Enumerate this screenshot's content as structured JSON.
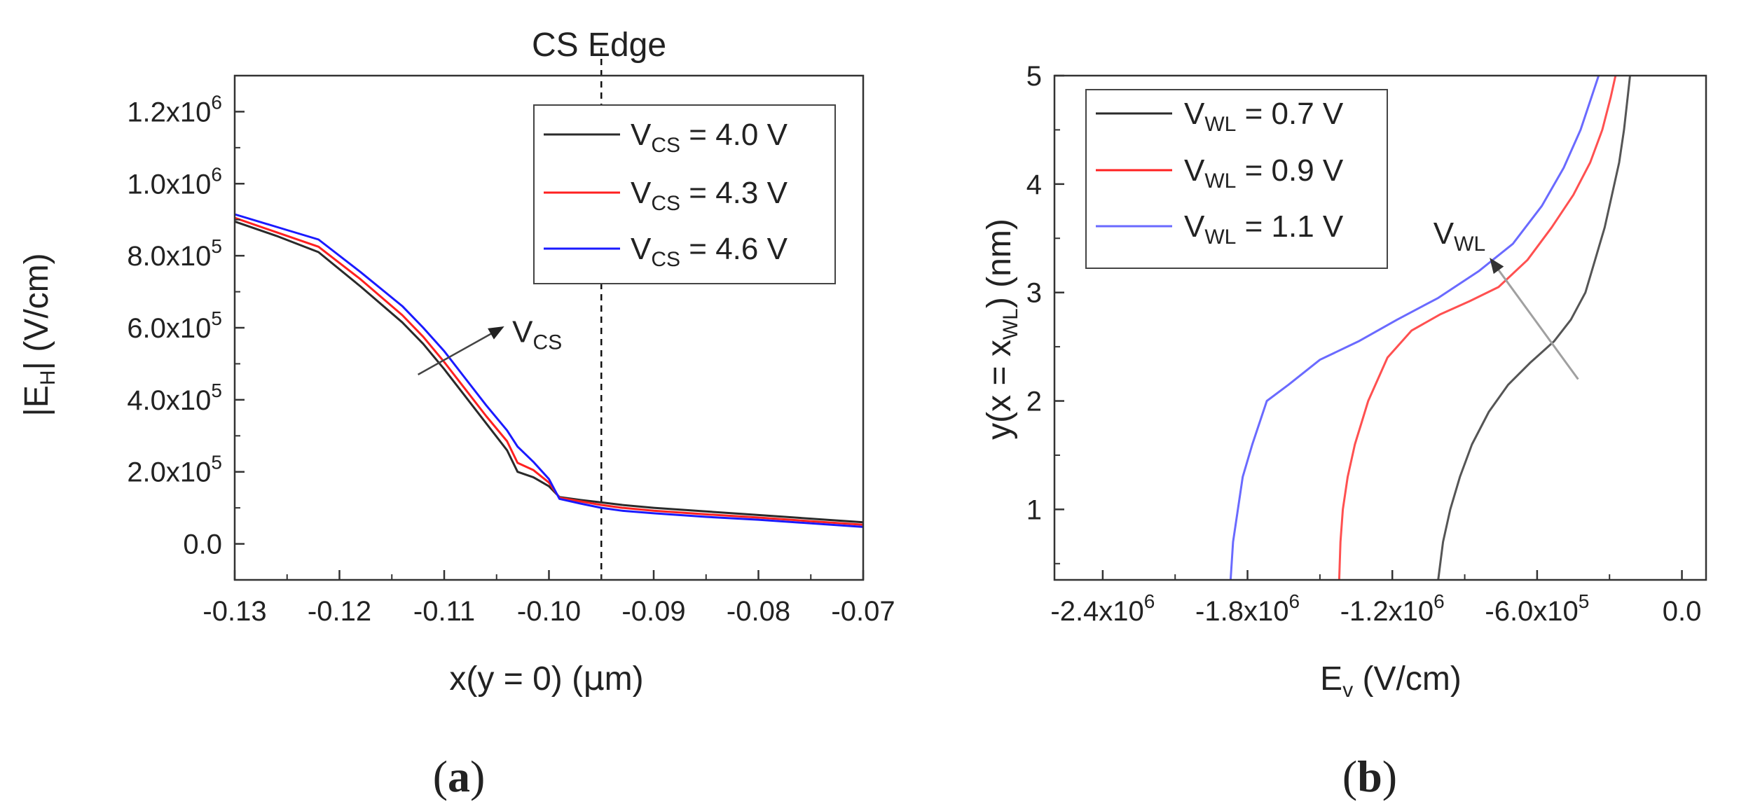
{
  "colors": {
    "black": "#2a2a2a",
    "red": "#ff2020",
    "blue": "#1a1aff",
    "gray": "#a0a0a0"
  },
  "chart_data": [
    {
      "type": "line",
      "panel": "(a)",
      "panel_letter": "a",
      "title": "CS Edge",
      "xlabel": {
        "main": "x(y = 0) (",
        "mu": "μ",
        "unit": "m)"
      },
      "ylabel": {
        "pre": "|E",
        "sub": "H",
        "post": "| (V/cm)"
      },
      "xlim": [
        -0.13,
        -0.07
      ],
      "ylim": [
        -100000,
        1300000
      ],
      "xticks": [
        -0.13,
        -0.12,
        -0.11,
        -0.1,
        -0.09,
        -0.08,
        -0.07
      ],
      "xtick_labels": [
        "-0.13",
        "-0.12",
        "-0.11",
        "-0.10",
        "-0.09",
        "-0.08",
        "-0.07"
      ],
      "yticks": [
        {
          "value": 0,
          "mant": "0.0",
          "exp": ""
        },
        {
          "value": 200000,
          "mant": "2.0x10",
          "exp": "5"
        },
        {
          "value": 400000,
          "mant": "4.0x10",
          "exp": "5"
        },
        {
          "value": 600000,
          "mant": "6.0x10",
          "exp": "5"
        },
        {
          "value": 800000,
          "mant": "8.0x10",
          "exp": "5"
        },
        {
          "value": 1000000,
          "mant": "1.0x10",
          "exp": "6"
        },
        {
          "value": 1200000,
          "mant": "1.2x10",
          "exp": "6"
        }
      ],
      "vline_x": -0.095,
      "annotation": {
        "pre": "V",
        "sub": "CS",
        "arrow_from": [
          -0.1125,
          470000
        ],
        "arrow_to": [
          -0.1045,
          600000
        ],
        "text_at": [
          -0.1035,
          560000
        ]
      },
      "series": [
        {
          "color_key": "black",
          "legend_pre": "V",
          "legend_sub": "CS",
          "legend_post": " = 4.0 V",
          "x": [
            -0.13,
            -0.126,
            -0.122,
            -0.118,
            -0.114,
            -0.112,
            -0.11,
            -0.108,
            -0.106,
            -0.104,
            -0.103,
            -0.1015,
            -0.1,
            -0.099,
            -0.097,
            -0.095,
            -0.093,
            -0.09,
            -0.085,
            -0.08,
            -0.075,
            -0.07
          ],
          "y": [
            895000,
            855000,
            810000,
            715000,
            615000,
            555000,
            485000,
            410000,
            335000,
            260000,
            200000,
            185000,
            160000,
            130000,
            122000,
            115000,
            108000,
            100000,
            90000,
            80000,
            70000,
            60000
          ]
        },
        {
          "color_key": "red",
          "legend_pre": "V",
          "legend_sub": "CS",
          "legend_post": " = 4.3 V",
          "x": [
            -0.13,
            -0.126,
            -0.122,
            -0.118,
            -0.114,
            -0.112,
            -0.11,
            -0.108,
            -0.106,
            -0.104,
            -0.103,
            -0.1015,
            -0.1,
            -0.099,
            -0.097,
            -0.095,
            -0.093,
            -0.09,
            -0.085,
            -0.08,
            -0.075,
            -0.07
          ],
          "y": [
            905000,
            865000,
            825000,
            735000,
            635000,
            575000,
            505000,
            430000,
            355000,
            285000,
            225000,
            205000,
            170000,
            128000,
            118000,
            108000,
            100000,
            92000,
            82000,
            73000,
            63000,
            53000
          ]
        },
        {
          "color_key": "blue",
          "legend_pre": "V",
          "legend_sub": "CS",
          "legend_post": " = 4.6 V",
          "x": [
            -0.13,
            -0.126,
            -0.122,
            -0.118,
            -0.114,
            -0.112,
            -0.11,
            -0.108,
            -0.106,
            -0.104,
            -0.103,
            -0.1015,
            -0.1,
            -0.099,
            -0.097,
            -0.095,
            -0.093,
            -0.09,
            -0.085,
            -0.08,
            -0.075,
            -0.07
          ],
          "y": [
            915000,
            880000,
            845000,
            755000,
            660000,
            600000,
            535000,
            460000,
            385000,
            315000,
            270000,
            228000,
            180000,
            125000,
            112000,
            100000,
            92000,
            85000,
            75000,
            67000,
            57000,
            47000
          ]
        }
      ]
    },
    {
      "type": "line",
      "panel": "(b)",
      "panel_letter": "b",
      "title": "",
      "xlabel": {
        "pre": "E",
        "sub": "v",
        "post": " (V/cm)"
      },
      "ylabel": {
        "pre": "y(x = x",
        "sub": "WL",
        "post": ") (nm)"
      },
      "xlim": [
        -2600000,
        100000
      ],
      "ylim": [
        0.35,
        5
      ],
      "xticks": [
        {
          "value": -2400000,
          "mant": "-2.4x10",
          "exp": "6"
        },
        {
          "value": -1800000,
          "mant": "-1.8x10",
          "exp": "6"
        },
        {
          "value": -1200000,
          "mant": "-1.2x10",
          "exp": "6"
        },
        {
          "value": -600000,
          "mant": "-6.0x10",
          "exp": "5"
        },
        {
          "value": 0,
          "mant": "0.0",
          "exp": ""
        }
      ],
      "yticks": [
        1,
        2,
        3,
        4,
        5
      ],
      "ytick_labels": [
        "1",
        "2",
        "3",
        "4",
        "5"
      ],
      "annotation": {
        "pre": "V",
        "sub": "WL",
        "arrow_from": [
          -430000,
          2.2
        ],
        "arrow_to": [
          -790000,
          3.3
        ],
        "text_at": [
          -1030000,
          3.45
        ]
      },
      "series": [
        {
          "color_key": "black",
          "legend_pre": "V",
          "legend_sub": "WL",
          "legend_post": " = 0.7 V",
          "x": [
            -1010000,
            -990000,
            -960000,
            -920000,
            -870000,
            -800000,
            -720000,
            -630000,
            -530000,
            -460000,
            -400000,
            -360000,
            -320000,
            -290000,
            -260000,
            -240000,
            -225000,
            -215000
          ],
          "y": [
            0.35,
            0.7,
            1.0,
            1.3,
            1.6,
            1.9,
            2.15,
            2.35,
            2.55,
            2.75,
            3.0,
            3.3,
            3.6,
            3.9,
            4.2,
            4.5,
            4.8,
            5.0
          ]
        },
        {
          "color_key": "red",
          "legend_pre": "V",
          "legend_sub": "WL",
          "legend_post": " = 0.9 V",
          "x": [
            -1420000,
            -1415000,
            -1405000,
            -1385000,
            -1355000,
            -1300000,
            -1220000,
            -1120000,
            -1000000,
            -880000,
            -760000,
            -640000,
            -540000,
            -450000,
            -380000,
            -330000,
            -295000,
            -275000
          ],
          "y": [
            0.35,
            0.7,
            1.0,
            1.3,
            1.6,
            2.0,
            2.4,
            2.65,
            2.8,
            2.92,
            3.05,
            3.3,
            3.6,
            3.9,
            4.2,
            4.5,
            4.8,
            5.0
          ]
        },
        {
          "color_key": "blue",
          "legend_pre": "V",
          "legend_sub": "WL",
          "legend_post": " = 1.1 V",
          "x": [
            -1870000,
            -1860000,
            -1840000,
            -1820000,
            -1780000,
            -1720000,
            -1630000,
            -1500000,
            -1340000,
            -1180000,
            -1010000,
            -840000,
            -700000,
            -580000,
            -490000,
            -420000,
            -375000,
            -345000
          ],
          "y": [
            0.35,
            0.7,
            1.0,
            1.3,
            1.6,
            2.0,
            2.15,
            2.38,
            2.55,
            2.75,
            2.95,
            3.2,
            3.45,
            3.8,
            4.15,
            4.5,
            4.8,
            5.0
          ]
        }
      ]
    }
  ]
}
